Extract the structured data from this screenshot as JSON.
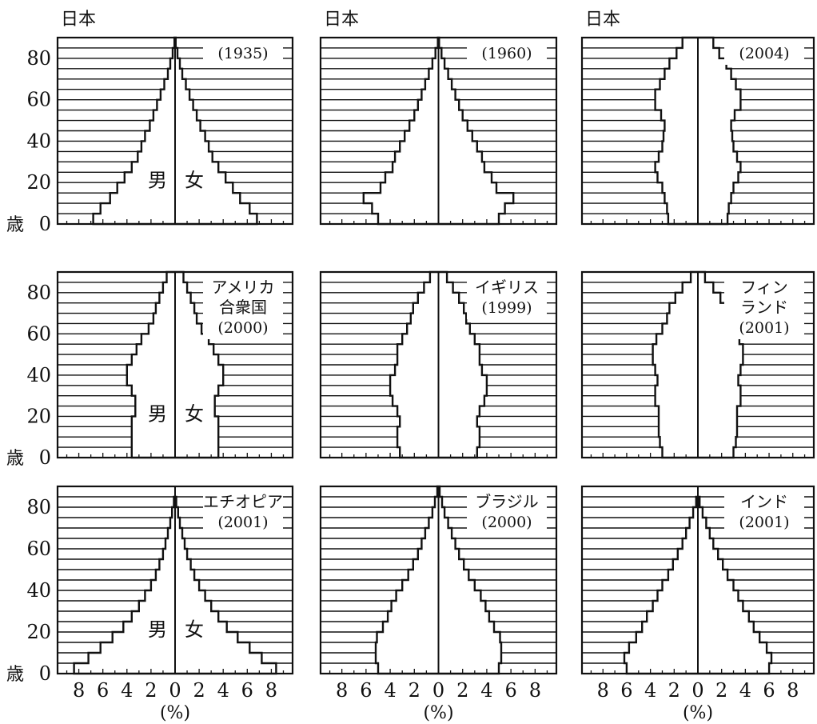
{
  "ylabel": "歳",
  "xlabel": "(%)",
  "sex_labels": {
    "male": "男",
    "female": "女"
  },
  "colors": {
    "ink": "#111111",
    "background": "#ffffff"
  },
  "chart_data": [
    {
      "type": "population-pyramid",
      "header": "日本",
      "label": [
        "(1935)"
      ],
      "ylim": [
        0,
        90
      ],
      "yticks": [
        0,
        20,
        40,
        60,
        80
      ],
      "xlim": [
        -9.5,
        9.5
      ],
      "xticks": [
        8,
        6,
        4,
        2,
        0,
        2,
        4,
        6,
        8
      ],
      "age_step": 5,
      "show_sex_labels": true,
      "male": [
        6.8,
        6.2,
        5.4,
        4.8,
        4.2,
        3.6,
        3.1,
        2.8,
        2.5,
        2.1,
        1.8,
        1.5,
        1.2,
        0.9,
        0.6,
        0.4,
        0.2,
        0.05
      ],
      "female": [
        6.8,
        6.2,
        5.4,
        4.8,
        4.2,
        3.6,
        3.1,
        2.8,
        2.5,
        2.1,
        1.8,
        1.5,
        1.2,
        0.9,
        0.6,
        0.4,
        0.2,
        0.05
      ]
    },
    {
      "type": "population-pyramid",
      "header": "日本",
      "label": [
        "(1960)"
      ],
      "ylim": [
        0,
        90
      ],
      "yticks": [
        0,
        20,
        40,
        60,
        80
      ],
      "xlim": [
        -9.5,
        9.5
      ],
      "xticks": [
        8,
        6,
        4,
        2,
        0,
        2,
        4,
        6,
        8
      ],
      "age_step": 5,
      "show_sex_labels": false,
      "male": [
        5.0,
        5.5,
        6.2,
        4.8,
        4.4,
        3.8,
        3.6,
        3.2,
        2.8,
        2.4,
        2.0,
        1.7,
        1.4,
        1.1,
        0.8,
        0.5,
        0.25,
        0.05
      ],
      "female": [
        5.0,
        5.5,
        6.2,
        4.8,
        4.4,
        3.8,
        3.6,
        3.2,
        2.8,
        2.4,
        2.0,
        1.7,
        1.4,
        1.1,
        0.8,
        0.5,
        0.25,
        0.05
      ]
    },
    {
      "type": "population-pyramid",
      "header": "日本",
      "label": [
        "(2004)"
      ],
      "ylim": [
        0,
        90
      ],
      "yticks": [
        0,
        20,
        40,
        60,
        80
      ],
      "xlim": [
        -9.5,
        9.5
      ],
      "xticks": [
        8,
        6,
        4,
        2,
        0,
        2,
        4,
        6,
        8
      ],
      "age_step": 5,
      "show_sex_labels": false,
      "male": [
        2.5,
        2.6,
        2.8,
        3.0,
        3.4,
        3.6,
        3.3,
        3.0,
        2.9,
        2.8,
        3.1,
        3.6,
        3.6,
        3.2,
        2.8,
        2.4,
        1.8,
        1.3
      ],
      "female": [
        2.5,
        2.6,
        2.8,
        3.0,
        3.4,
        3.6,
        3.3,
        3.0,
        2.9,
        2.8,
        3.1,
        3.6,
        3.6,
        3.2,
        2.8,
        2.4,
        1.8,
        1.3
      ]
    },
    {
      "type": "population-pyramid",
      "header": "",
      "label": [
        "アメリカ",
        "合衆国",
        "(2000)"
      ],
      "ylim": [
        0,
        90
      ],
      "yticks": [
        0,
        20,
        40,
        60,
        80
      ],
      "xlim": [
        -9.5,
        9.5
      ],
      "xticks": [
        8,
        6,
        4,
        2,
        0,
        2,
        4,
        6,
        8
      ],
      "age_step": 5,
      "show_sex_labels": true,
      "male": [
        3.6,
        3.6,
        3.6,
        3.6,
        3.3,
        3.3,
        3.6,
        4.0,
        4.0,
        3.6,
        3.2,
        2.8,
        2.2,
        1.8,
        1.6,
        1.3,
        1.0,
        0.7
      ],
      "female": [
        3.6,
        3.6,
        3.6,
        3.6,
        3.3,
        3.3,
        3.6,
        4.0,
        4.0,
        3.6,
        3.2,
        2.8,
        2.2,
        1.8,
        1.6,
        1.3,
        1.0,
        0.7
      ]
    },
    {
      "type": "population-pyramid",
      "header": "",
      "label": [
        "イギリス",
        "(1999)"
      ],
      "ylim": [
        0,
        90
      ],
      "yticks": [
        0,
        20,
        40,
        60,
        80
      ],
      "xlim": [
        -9.5,
        9.5
      ],
      "xticks": [
        8,
        6,
        4,
        2,
        0,
        2,
        4,
        6,
        8
      ],
      "age_step": 5,
      "show_sex_labels": false,
      "male": [
        3.2,
        3.4,
        3.4,
        3.2,
        3.4,
        3.8,
        4.0,
        4.0,
        3.6,
        3.4,
        3.4,
        3.0,
        2.6,
        2.3,
        2.1,
        1.7,
        1.2,
        0.7
      ],
      "female": [
        3.2,
        3.4,
        3.4,
        3.2,
        3.4,
        3.8,
        4.0,
        4.0,
        3.6,
        3.4,
        3.4,
        3.0,
        2.6,
        2.3,
        2.1,
        1.7,
        1.2,
        0.7
      ]
    },
    {
      "type": "population-pyramid",
      "header": "",
      "label": [
        "フィン",
        "ランド",
        "(2001)"
      ],
      "ylim": [
        0,
        90
      ],
      "yticks": [
        0,
        20,
        40,
        60,
        80
      ],
      "xlim": [
        -9.5,
        9.5
      ],
      "xticks": [
        8,
        6,
        4,
        2,
        0,
        2,
        4,
        6,
        8
      ],
      "age_step": 5,
      "show_sex_labels": false,
      "male": [
        3.0,
        3.2,
        3.3,
        3.3,
        3.3,
        3.6,
        3.6,
        3.4,
        3.6,
        3.8,
        3.8,
        3.5,
        3.0,
        2.6,
        2.4,
        1.9,
        1.3,
        0.6
      ],
      "female": [
        3.0,
        3.2,
        3.3,
        3.3,
        3.3,
        3.6,
        3.6,
        3.4,
        3.6,
        3.8,
        3.8,
        3.5,
        3.0,
        2.6,
        2.4,
        1.9,
        1.3,
        0.6
      ]
    },
    {
      "type": "population-pyramid",
      "header": "",
      "label": [
        "エチオピア",
        "(2001)"
      ],
      "ylim": [
        0,
        90
      ],
      "yticks": [
        0,
        20,
        40,
        60,
        80
      ],
      "xlim": [
        -9.5,
        9.5
      ],
      "xticks": [
        8,
        6,
        4,
        2,
        0,
        2,
        4,
        6,
        8
      ],
      "age_step": 5,
      "show_sex_labels": true,
      "male": [
        8.4,
        7.2,
        6.2,
        5.2,
        4.3,
        3.6,
        3.0,
        2.5,
        2.0,
        1.6,
        1.3,
        1.0,
        0.8,
        0.6,
        0.4,
        0.25,
        0.1
      ],
      "female": [
        8.4,
        7.2,
        6.2,
        5.2,
        4.3,
        3.6,
        3.0,
        2.5,
        2.0,
        1.6,
        1.3,
        1.0,
        0.8,
        0.6,
        0.4,
        0.25,
        0.1
      ]
    },
    {
      "type": "population-pyramid",
      "header": "",
      "label": [
        "ブラジル",
        "(2000)"
      ],
      "ylim": [
        0,
        90
      ],
      "yticks": [
        0,
        20,
        40,
        60,
        80
      ],
      "xlim": [
        -9.5,
        9.5
      ],
      "xticks": [
        8,
        6,
        4,
        2,
        0,
        2,
        4,
        6,
        8
      ],
      "age_step": 5,
      "show_sex_labels": false,
      "male": [
        5.0,
        5.2,
        5.2,
        5.1,
        4.6,
        4.2,
        3.9,
        3.5,
        3.0,
        2.5,
        2.1,
        1.7,
        1.4,
        1.1,
        0.8,
        0.5,
        0.3,
        0.1
      ],
      "female": [
        5.0,
        5.2,
        5.2,
        5.1,
        4.6,
        4.2,
        3.9,
        3.5,
        3.0,
        2.5,
        2.1,
        1.7,
        1.4,
        1.1,
        0.8,
        0.5,
        0.3,
        0.1
      ]
    },
    {
      "type": "population-pyramid",
      "header": "",
      "label": [
        "インド",
        "(2001)"
      ],
      "ylim": [
        0,
        90
      ],
      "yticks": [
        0,
        20,
        40,
        60,
        80
      ],
      "xlim": [
        -9.5,
        9.5
      ],
      "xticks": [
        8,
        6,
        4,
        2,
        0,
        2,
        4,
        6,
        8
      ],
      "age_step": 5,
      "show_sex_labels": false,
      "male": [
        6.0,
        6.2,
        5.8,
        5.2,
        4.7,
        4.3,
        3.8,
        3.4,
        3.0,
        2.5,
        2.1,
        1.7,
        1.3,
        1.0,
        0.7,
        0.4,
        0.15
      ],
      "female": [
        6.0,
        6.2,
        5.8,
        5.2,
        4.7,
        4.3,
        3.8,
        3.4,
        3.0,
        2.5,
        2.1,
        1.7,
        1.3,
        1.0,
        0.7,
        0.4,
        0.15
      ]
    }
  ]
}
